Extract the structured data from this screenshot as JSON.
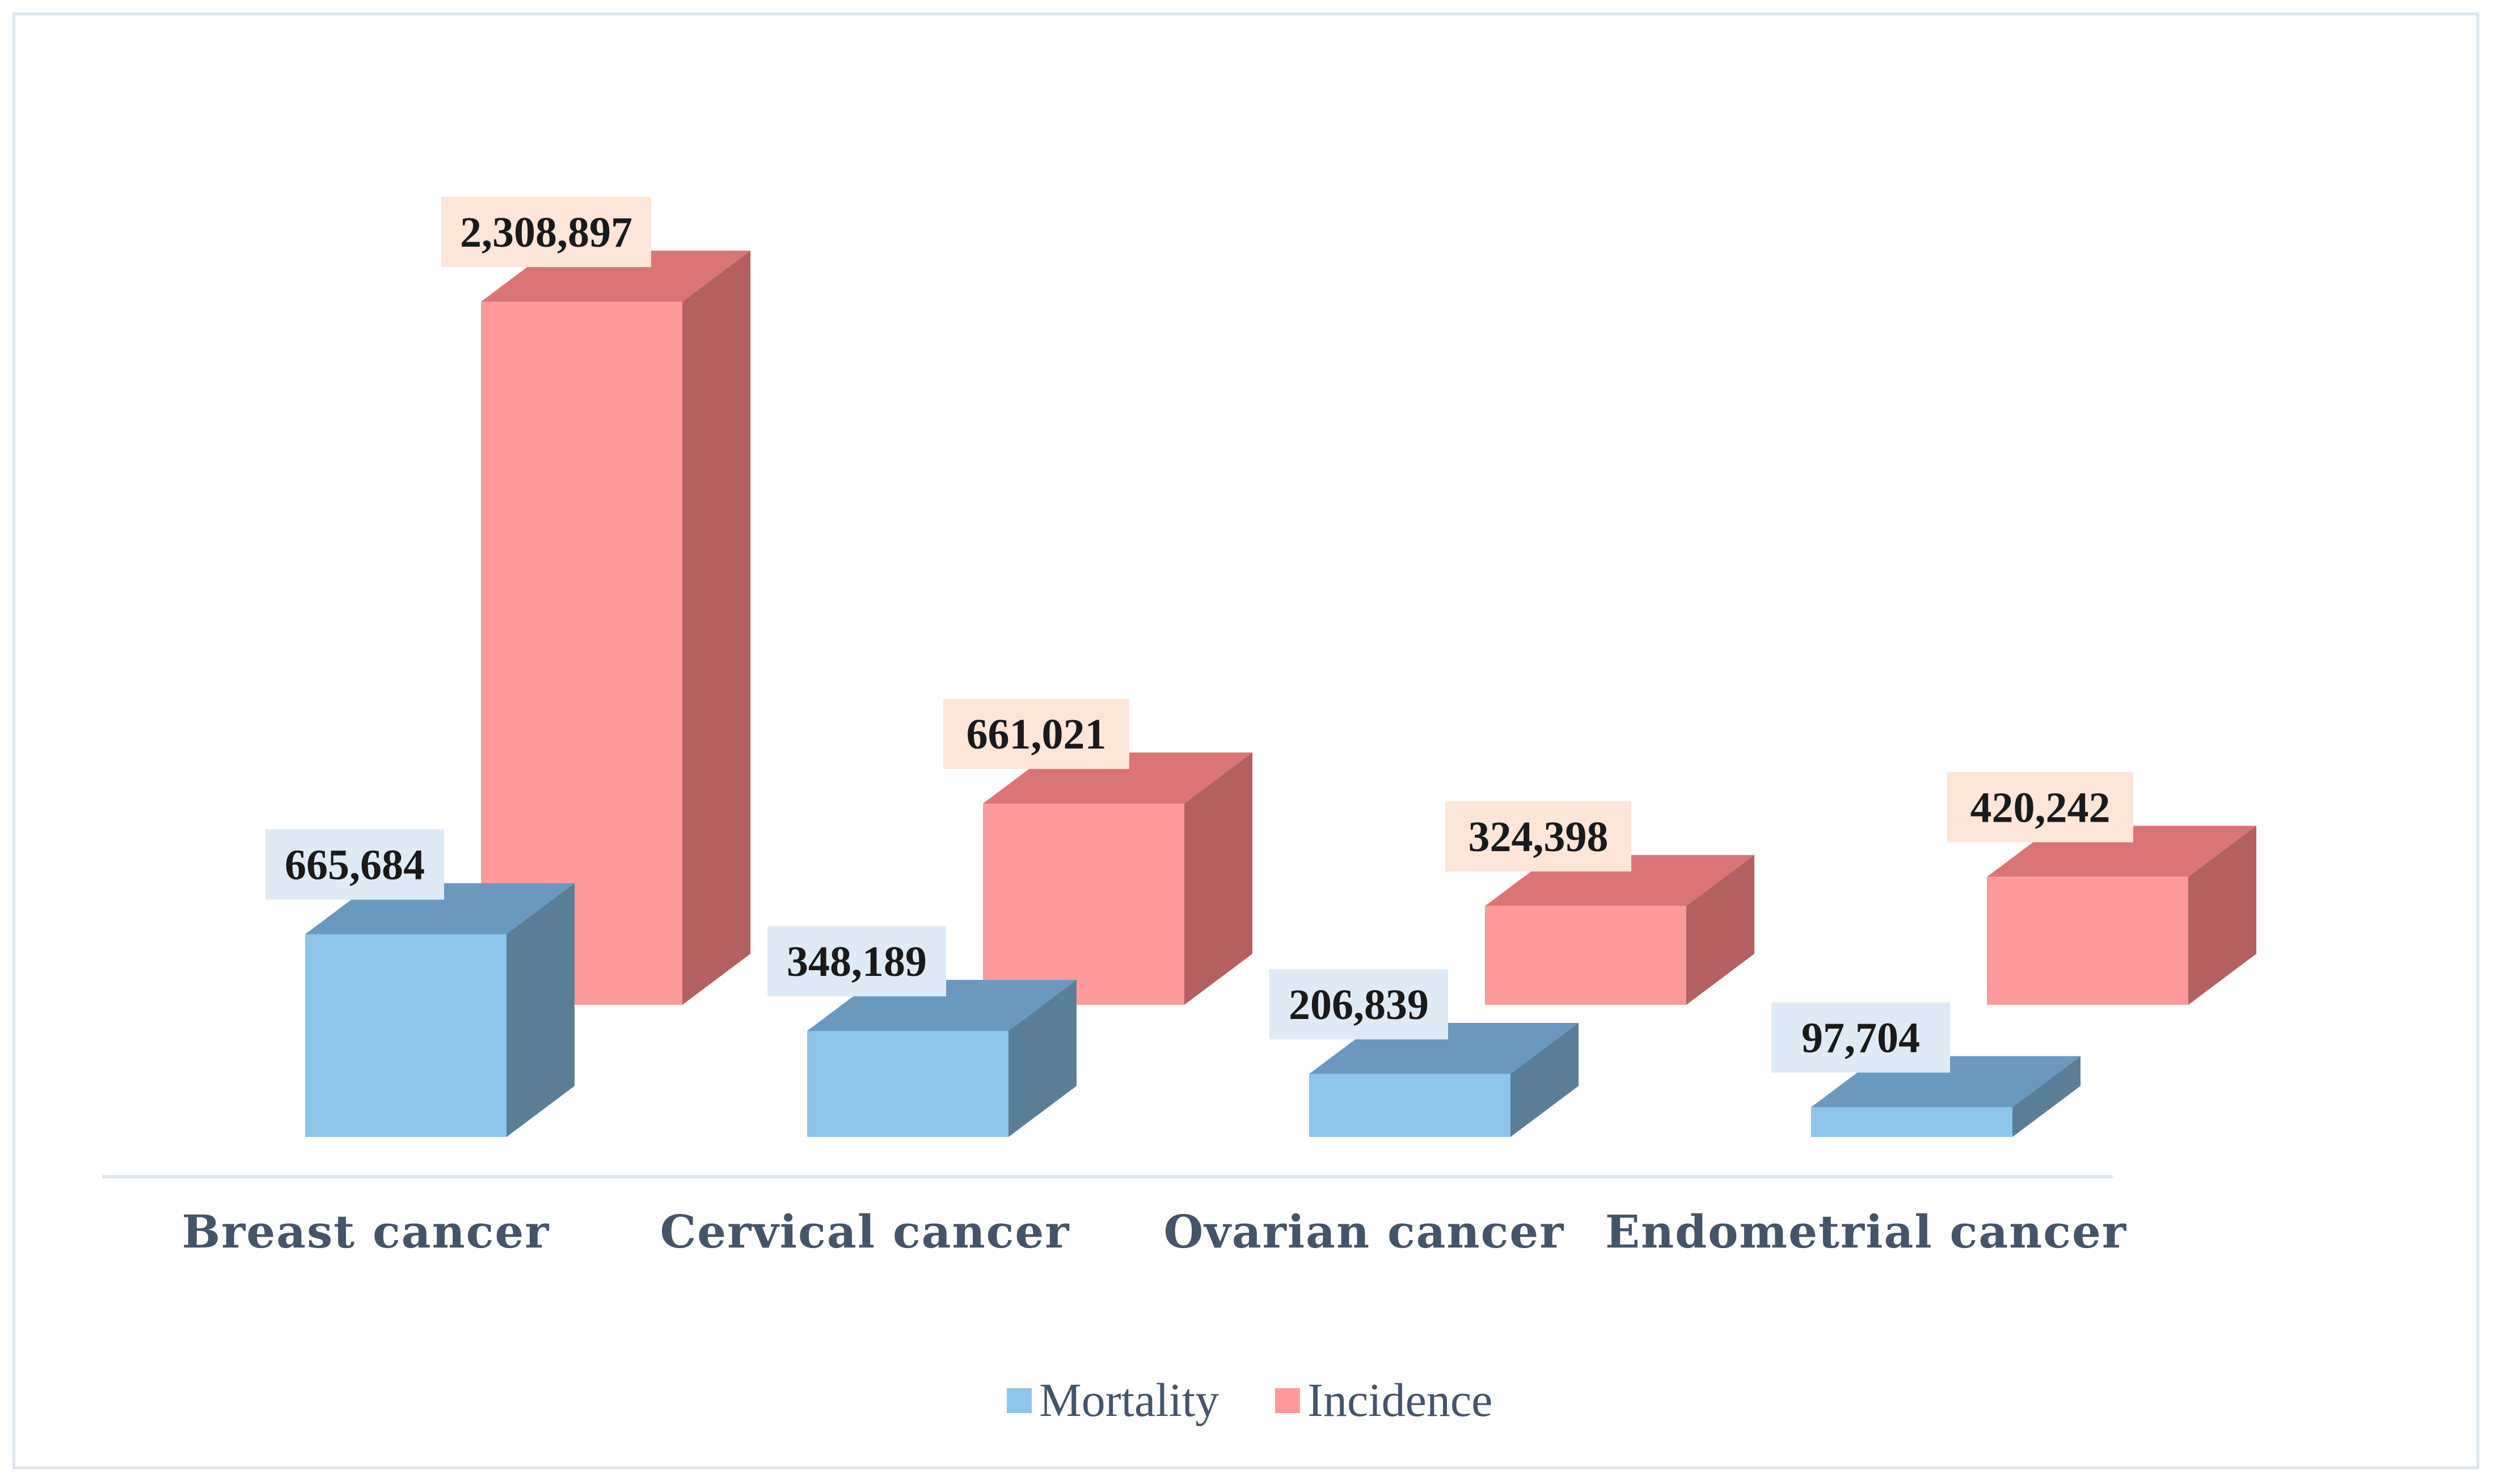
{
  "chart_data": {
    "type": "bar",
    "title": "",
    "xlabel": "",
    "ylabel": "",
    "categories": [
      "Breast cancer",
      "Cervical cancer",
      "Ovarian cancer",
      "Endometrial cancer"
    ],
    "series": [
      {
        "name": "Mortality",
        "values": [
          665684,
          348189,
          206839,
          97704
        ],
        "labels": [
          "665,684",
          "348,189",
          "206,839",
          "97,704"
        ],
        "color_front": "#8ec5ea",
        "color_top": "#6b98bd",
        "color_side": "#5a7e98",
        "label_bg": "#deebf7"
      },
      {
        "name": "Incidence",
        "values": [
          2308897,
          661021,
          324398,
          420242
        ],
        "labels": [
          "2,308,897",
          "661,021",
          "324,398",
          "420,242"
        ],
        "color_front": "#ff9a9a",
        "color_top": "#db7474",
        "color_side": "#b56060",
        "label_bg": "#fde5d8"
      }
    ],
    "legend": [
      "Mortality",
      "Incidence"
    ],
    "legend_position": "bottom",
    "grid": false,
    "axis_color": "#dde6ee"
  }
}
